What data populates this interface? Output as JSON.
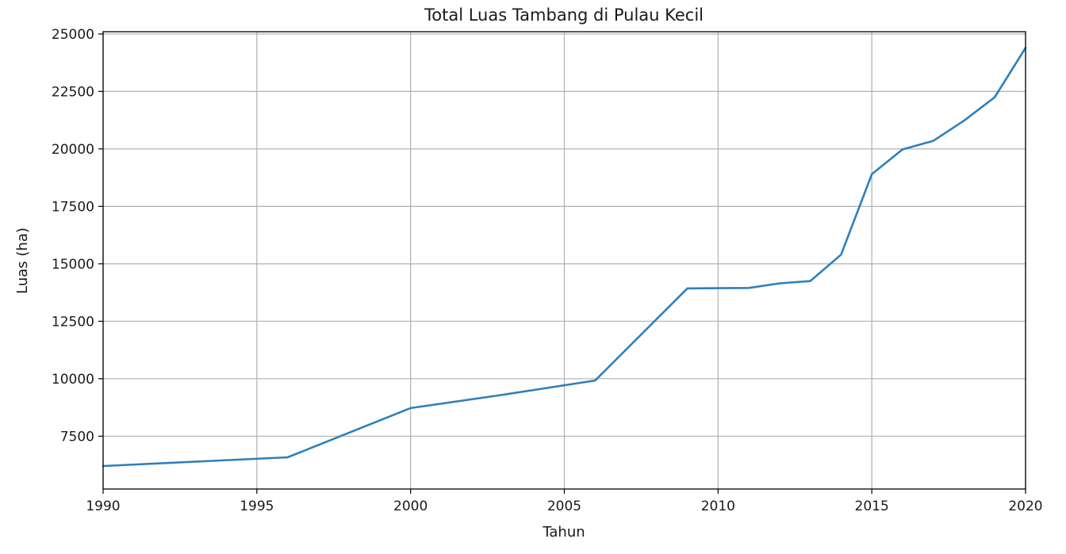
{
  "chart_data": {
    "type": "line",
    "title": "Total Luas Tambang di Pulau Kecil",
    "xlabel": "Tahun",
    "ylabel": "Luas (ha)",
    "xlim": [
      1990,
      2020
    ],
    "ylim": [
      5200,
      25100
    ],
    "xticks": [
      1990,
      1995,
      2000,
      2005,
      2010,
      2015,
      2020
    ],
    "yticks": [
      7500,
      10000,
      12500,
      15000,
      17500,
      20000,
      22500,
      25000
    ],
    "grid": true,
    "series": [
      {
        "color": "#2e7fbc",
        "x": [
          1990,
          1996,
          2000,
          2003,
          2006,
          2009,
          2011,
          2012,
          2013,
          2014,
          2015,
          2016,
          2017,
          2018,
          2019,
          2020
        ],
        "y": [
          6200,
          6580,
          8720,
          9300,
          9920,
          13930,
          13950,
          14150,
          14250,
          15400,
          18900,
          19980,
          20350,
          21230,
          22250,
          24400
        ]
      }
    ]
  }
}
